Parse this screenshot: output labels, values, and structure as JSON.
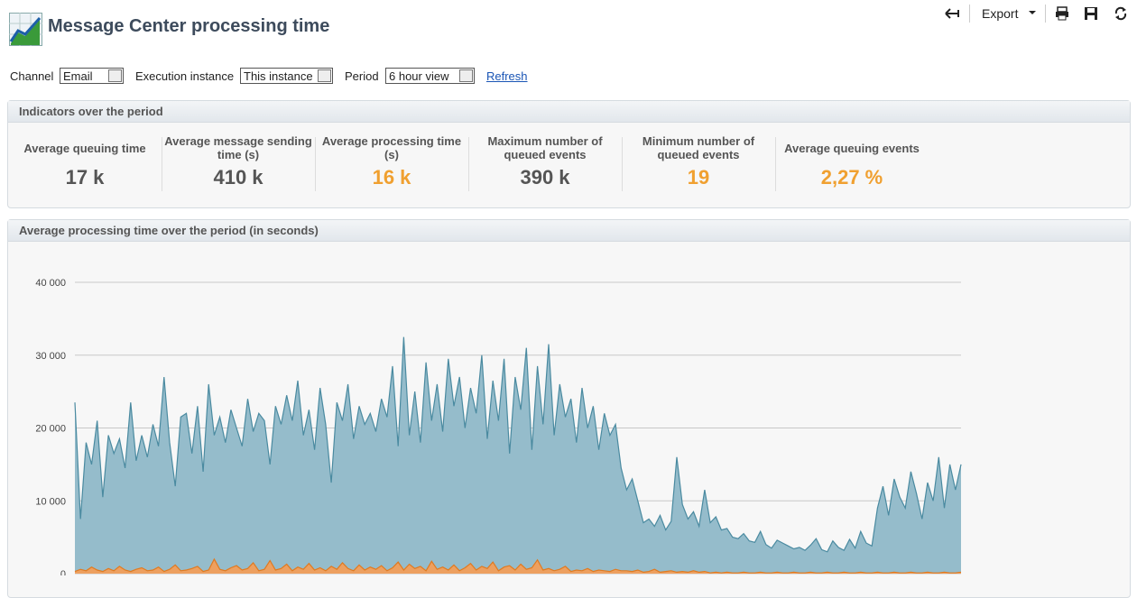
{
  "header": {
    "title": "Message Center processing time"
  },
  "toolbar": {
    "export": "Export"
  },
  "filters": [
    {
      "label": "Channel",
      "value": "Email"
    },
    {
      "label": "Execution instance",
      "value": "This instance"
    },
    {
      "label": "Period",
      "value": "6 hour view"
    }
  ],
  "refresh": "Refresh",
  "indicators": {
    "title": "Indicators over the period",
    "items": [
      {
        "label": "Average queuing time",
        "value": "17 k",
        "color": "#555555"
      },
      {
        "label": "Average message sending time (s)",
        "value": "410 k",
        "color": "#555555"
      },
      {
        "label": "Average processing time (s)",
        "value": "16 k",
        "color": "#f0a030"
      },
      {
        "label": "Maximum number of queued events",
        "value": "390 k",
        "color": "#555555"
      },
      {
        "label": "Minimum number of queued events",
        "value": "19",
        "color": "#f0a030"
      },
      {
        "label": "Average queuing events",
        "value": "2,27 %",
        "color": "#f0a030"
      }
    ]
  },
  "chart_data": {
    "type": "area",
    "title": "Average processing time over the period (in seconds)",
    "ylim": [
      0,
      40000
    ],
    "yticks": [
      0,
      {
        "value": 10000,
        "label": "10 000"
      },
      {
        "value": 20000,
        "label": "20 000"
      },
      {
        "value": 30000,
        "label": "30 000"
      },
      {
        "value": 40000,
        "label": "40 000"
      }
    ],
    "grid": true,
    "series": [
      {
        "color": "#4a8aa0",
        "fill": "#95bccb",
        "values": [
          23500,
          7500,
          18000,
          15000,
          21000,
          10500,
          19000,
          16500,
          18500,
          14500,
          23500,
          15500,
          19000,
          16000,
          20500,
          17500,
          27000,
          18000,
          12000,
          21500,
          22000,
          16500,
          23000,
          14000,
          26000,
          19000,
          21500,
          18000,
          22500,
          20000,
          17500,
          24000,
          19500,
          22000,
          21000,
          15000,
          23000,
          20500,
          24500,
          21000,
          26500,
          19000,
          22500,
          17000,
          25500,
          20500,
          12500,
          23500,
          21000,
          26000,
          18500,
          23000,
          20500,
          22000,
          19500,
          24000,
          21500,
          28500,
          17500,
          32500,
          19000,
          25000,
          18000,
          29000,
          21000,
          26000,
          19500,
          29500,
          23000,
          27000,
          20000,
          25500,
          22000,
          30000,
          18500,
          26500,
          21000,
          29500,
          16500,
          27000,
          22500,
          31000,
          17000,
          28500,
          20500,
          31500,
          19000,
          26000,
          21500,
          24000,
          18000,
          25500,
          20000,
          23000,
          17000,
          22000,
          19000,
          20500,
          14500,
          11500,
          13000,
          10000,
          7000,
          7500,
          6500,
          8000,
          6000,
          7200,
          16000,
          9500,
          7500,
          8500,
          6500,
          11500,
          7000,
          7800,
          6000,
          6200,
          5000,
          4800,
          5500,
          4500,
          4300,
          5800,
          4000,
          3500,
          4600,
          4200,
          3800,
          3400,
          3600,
          3200,
          3900,
          4800,
          3300,
          3000,
          4500,
          3600,
          3200,
          4700,
          3500,
          5800,
          4200,
          3800,
          9000,
          12000,
          8000,
          13000,
          10500,
          9000,
          14000,
          11000,
          7500,
          12500,
          10000,
          16000,
          9000,
          15000,
          11500,
          15000
        ]
      },
      {
        "color": "#e07a20",
        "fill": "#eda060",
        "values": [
          300,
          600,
          400,
          900,
          500,
          300,
          700,
          400,
          1000,
          500,
          300,
          600,
          800,
          400,
          500,
          900,
          300,
          600,
          1200,
          400,
          500,
          700,
          1000,
          300,
          500,
          2000,
          600,
          400,
          800,
          1100,
          500,
          700,
          1500,
          400,
          600,
          1800,
          500,
          700,
          1300,
          400,
          900,
          600,
          1400,
          500,
          800,
          400,
          1000,
          600,
          1500,
          700,
          400,
          1200,
          500,
          900,
          600,
          1100,
          400,
          800,
          1600,
          500,
          1300,
          700,
          1000,
          400,
          1700,
          600,
          900,
          500,
          1200,
          400,
          800,
          1400,
          500,
          1000,
          700,
          1600,
          400,
          900,
          1100,
          500,
          1300,
          600,
          800,
          1900,
          500,
          700,
          400,
          600,
          1000,
          300,
          500,
          400,
          700,
          300,
          500,
          400,
          300,
          600,
          400,
          400,
          300,
          500,
          200,
          300,
          600,
          200,
          300,
          400,
          200,
          300,
          200,
          400,
          200,
          300,
          100,
          200,
          100,
          200,
          100,
          100,
          200,
          100,
          100,
          200,
          100,
          100,
          200,
          100,
          100,
          200,
          100,
          100,
          200,
          100,
          100,
          200,
          100,
          100,
          200,
          100,
          100,
          200,
          100,
          100,
          200,
          100,
          100,
          200,
          100,
          100,
          200,
          100,
          100,
          200,
          100,
          100,
          200,
          100,
          100,
          200
        ]
      }
    ]
  }
}
